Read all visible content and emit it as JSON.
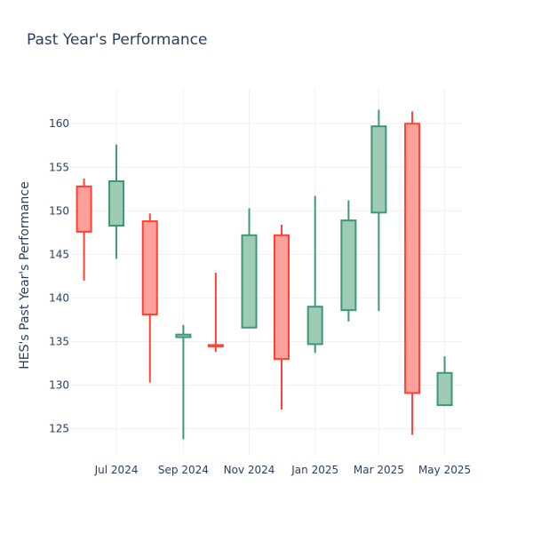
{
  "chart_data": {
    "type": "candlestick",
    "title": "Past Year's Performance",
    "xlabel": "",
    "ylabel": "HES's Past Year's Performance",
    "ylim": [
      122,
      164
    ],
    "yticks": [
      125,
      130,
      135,
      140,
      145,
      150,
      155,
      160
    ],
    "xticks": [
      {
        "label": "Jul 2024",
        "date": "2024-07-01"
      },
      {
        "label": "Sep 2024",
        "date": "2024-09-01"
      },
      {
        "label": "Nov 2024",
        "date": "2024-11-01"
      },
      {
        "label": "Jan 2025",
        "date": "2025-01-01"
      },
      {
        "label": "Mar 2025",
        "date": "2025-03-01"
      },
      {
        "label": "May 2025",
        "date": "2025-05-01"
      }
    ],
    "xrange": [
      "2024-05-20",
      "2025-05-17"
    ],
    "grid": true,
    "colors": {
      "increasing": "#3d9970",
      "increasing_fill": "#9ecbb5",
      "decreasing": "#ff4136",
      "decreasing_fill": "#ffa09b"
    },
    "candles": [
      {
        "date": "2024-06-01",
        "open": 152.8,
        "high": 153.7,
        "low": 142.0,
        "close": 147.6
      },
      {
        "date": "2024-07-01",
        "open": 148.3,
        "high": 157.6,
        "low": 144.5,
        "close": 153.4
      },
      {
        "date": "2024-08-01",
        "open": 148.8,
        "high": 149.7,
        "low": 130.3,
        "close": 138.1
      },
      {
        "date": "2024-09-01",
        "open": 135.5,
        "high": 136.9,
        "low": 123.8,
        "close": 135.8
      },
      {
        "date": "2024-10-01",
        "open": 134.6,
        "high": 142.9,
        "low": 133.8,
        "close": 134.5
      },
      {
        "date": "2024-11-01",
        "open": 136.6,
        "high": 150.3,
        "low": 136.6,
        "close": 147.2
      },
      {
        "date": "2024-12-01",
        "open": 147.2,
        "high": 148.4,
        "low": 127.2,
        "close": 133.0
      },
      {
        "date": "2025-01-01",
        "open": 134.7,
        "high": 151.7,
        "low": 133.7,
        "close": 139.0
      },
      {
        "date": "2025-02-01",
        "open": 138.6,
        "high": 151.2,
        "low": 137.3,
        "close": 148.9
      },
      {
        "date": "2025-03-01",
        "open": 149.8,
        "high": 161.6,
        "low": 138.5,
        "close": 159.7
      },
      {
        "date": "2025-04-01",
        "open": 160.0,
        "high": 161.4,
        "low": 124.3,
        "close": 129.1
      },
      {
        "date": "2025-05-01",
        "open": 127.7,
        "high": 133.3,
        "low": 127.6,
        "close": 131.4
      }
    ]
  }
}
